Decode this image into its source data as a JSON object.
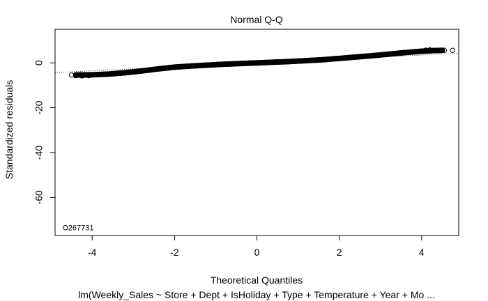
{
  "chart_data": {
    "type": "scatter",
    "title": "Normal Q-Q",
    "xlabel": "Theoretical Quantiles",
    "ylabel": "Standardized residuals",
    "subtitle": "lm(Weekly_Sales ~ Store + Dept + IsHoliday + Type + Temperature + Year + Mo ...",
    "xlim": [
      -4.9,
      4.9
    ],
    "ylim": [
      -77,
      15
    ],
    "x_ticks": [
      -4,
      -2,
      0,
      2,
      4
    ],
    "y_ticks": [
      0,
      -20,
      -40,
      -60
    ],
    "grid": false,
    "marker": "open-circle",
    "reference_line": {
      "style": "dotted",
      "points": [
        [
          -4.9,
          -4.3
        ],
        [
          4.9,
          4.3
        ]
      ]
    },
    "curve": [
      [
        -4.4,
        -5.4
      ],
      [
        -4.0,
        -5.3
      ],
      [
        -3.6,
        -5.0
      ],
      [
        -3.2,
        -4.4
      ],
      [
        -2.8,
        -3.6
      ],
      [
        -2.4,
        -2.7
      ],
      [
        -2.0,
        -1.9
      ],
      [
        -1.6,
        -1.4
      ],
      [
        -1.2,
        -1.0
      ],
      [
        -0.8,
        -0.6
      ],
      [
        -0.4,
        -0.3
      ],
      [
        0.0,
        0.0
      ],
      [
        0.4,
        0.3
      ],
      [
        0.8,
        0.6
      ],
      [
        1.2,
        1.0
      ],
      [
        1.6,
        1.4
      ],
      [
        2.0,
        2.0
      ],
      [
        2.4,
        2.6
      ],
      [
        2.8,
        3.2
      ],
      [
        3.2,
        3.9
      ],
      [
        3.6,
        4.6
      ],
      [
        4.0,
        5.2
      ],
      [
        4.3,
        5.5
      ],
      [
        4.5,
        5.6
      ]
    ],
    "tail_points": {
      "left": [
        [
          -4.2,
          -5.6
        ],
        [
          -4.25,
          -5.8
        ],
        [
          -4.3,
          -5.5
        ],
        [
          -4.4,
          -5.7
        ],
        [
          -4.5,
          -5.4
        ],
        [
          -4.08,
          -5.7
        ],
        [
          -4.12,
          -5.5
        ]
      ],
      "right": [
        [
          4.1,
          5.7
        ],
        [
          4.2,
          5.8
        ],
        [
          4.3,
          5.6
        ],
        [
          4.4,
          5.6
        ],
        [
          4.55,
          5.6
        ],
        [
          4.75,
          5.6
        ],
        [
          4.15,
          5.5
        ]
      ]
    },
    "outlier": {
      "x": -4.65,
      "y": -73.5,
      "label": "267731"
    }
  }
}
